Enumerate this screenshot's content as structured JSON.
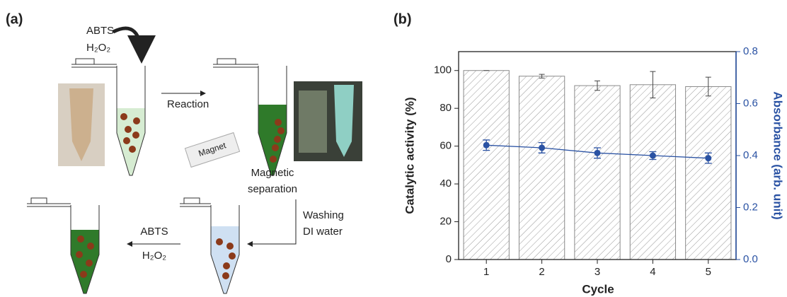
{
  "panel_a": {
    "label": "(a)",
    "reagent_top": [
      "ABTS",
      "H₂O₂"
    ],
    "reaction": "Reaction",
    "magnet": "Magnet",
    "separation": [
      "Magnetic",
      "separation"
    ],
    "washing": [
      "Washing",
      "DI water"
    ],
    "reagent_bottom": [
      "ABTS",
      "H₂O₂"
    ]
  },
  "chart_data": {
    "type": "bar",
    "label": "(b)",
    "xlabel": "Cycle",
    "ylabel": "Catalytic activity (%)",
    "y2label": "Absorbance (arb. unit)",
    "categories": [
      "1",
      "2",
      "3",
      "4",
      "5"
    ],
    "series": [
      {
        "type": "bar",
        "color": "#8a8a8a",
        "values": [
          100,
          97,
          92,
          92.5,
          91.5
        ],
        "errors": [
          0,
          1,
          2.5,
          7,
          5
        ]
      },
      {
        "type": "line",
        "axis": "y2",
        "color": "#2a52a3",
        "values": [
          0.44,
          0.43,
          0.41,
          0.4,
          0.39
        ],
        "errors": [
          0.02,
          0.02,
          0.02,
          0.015,
          0.02
        ]
      }
    ],
    "ylim": [
      0,
      110
    ],
    "yticks": [
      0,
      20,
      40,
      60,
      80,
      100
    ],
    "y2lim": [
      0,
      0.8
    ],
    "y2ticks": [
      {
        "value": 0,
        "label": "0.0"
      },
      {
        "value": 0.2,
        "label": "0.2"
      },
      {
        "value": 0.4,
        "label": "0.4"
      },
      {
        "value": 0.6,
        "label": "0.6"
      },
      {
        "value": 0.8,
        "label": "0.8"
      }
    ]
  }
}
